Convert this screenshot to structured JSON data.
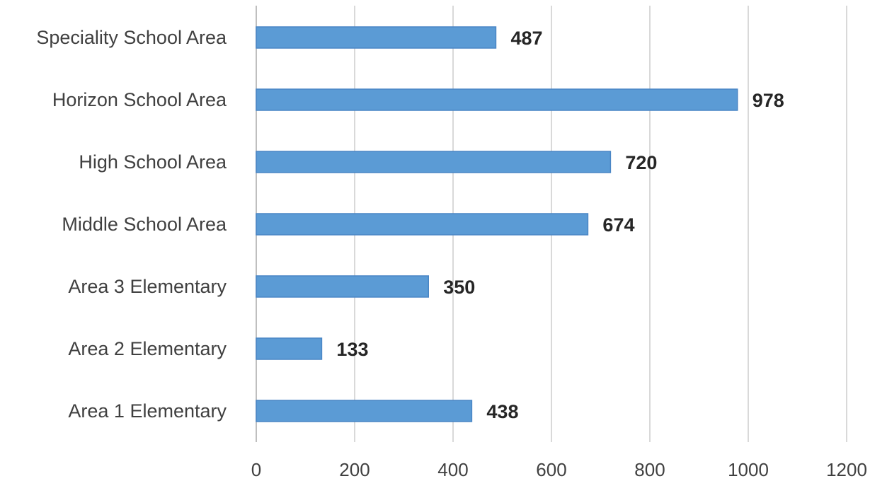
{
  "chart_data": {
    "type": "bar",
    "orientation": "horizontal",
    "title": "",
    "xlabel": "",
    "ylabel": "",
    "categories": [
      "Speciality School Area",
      "Horizon School Area",
      "High School Area",
      "Middle School Area",
      "Area 3 Elementary",
      "Area 2 Elementary",
      "Area 1 Elementary"
    ],
    "values": [
      487,
      978,
      720,
      674,
      350,
      133,
      438
    ],
    "xlim": [
      0,
      1200
    ],
    "x_ticks": [
      "0",
      "200",
      "400",
      "600",
      "800",
      "1000",
      "1200"
    ],
    "grid": true,
    "legend": "none",
    "data_labels": true,
    "bar_color": "#5b9bd5",
    "bar_edge_color": "#4a86c5"
  }
}
